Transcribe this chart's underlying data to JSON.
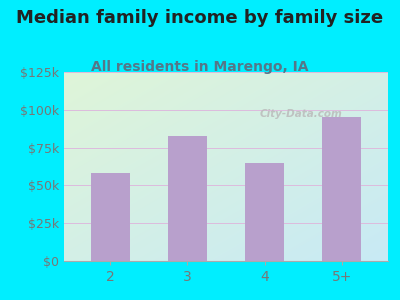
{
  "title": "Median family income by family size",
  "subtitle": "All residents in Marengo, IA",
  "categories": [
    "2",
    "3",
    "4",
    "5+"
  ],
  "values": [
    58000,
    83000,
    65000,
    95000
  ],
  "bar_color": "#b8a0cc",
  "ylim": [
    0,
    125000
  ],
  "yticks": [
    0,
    25000,
    50000,
    75000,
    100000,
    125000
  ],
  "ytick_labels": [
    "$0",
    "$25k",
    "$50k",
    "$75k",
    "$100k",
    "$125k"
  ],
  "background_outer": "#00eeff",
  "background_inner_topleft": "#dff5d8",
  "background_inner_bottomright": "#c8eaf5",
  "title_color": "#222222",
  "subtitle_color": "#557788",
  "title_fontsize": 13,
  "subtitle_fontsize": 10,
  "watermark": "City-Data.com",
  "tick_color": "#777777",
  "grid_color": "#ddbbdd"
}
